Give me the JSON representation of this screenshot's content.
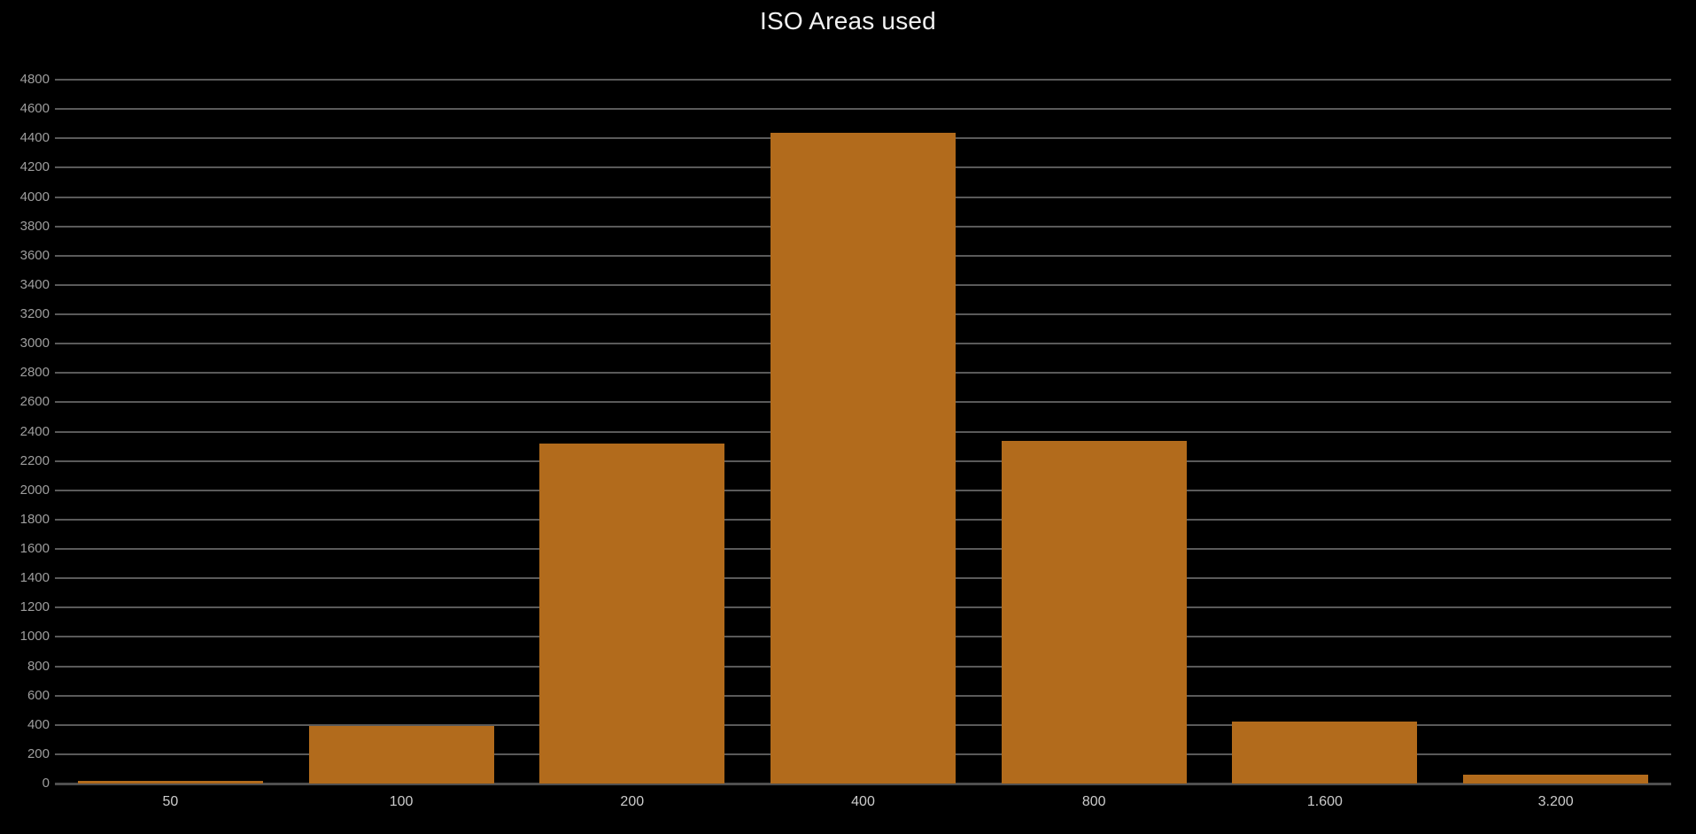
{
  "chart_data": {
    "type": "bar",
    "title": "ISO Areas used",
    "categories": [
      "50",
      "100",
      "200",
      "400",
      "800",
      "1.600",
      "3.200"
    ],
    "values": [
      20,
      390,
      2320,
      4440,
      2335,
      420,
      60
    ],
    "series_note": "single series, no legend shown",
    "xlabel": "",
    "ylabel": "",
    "ylim": [
      0,
      4800
    ],
    "ytick_step": 200,
    "yticks": [
      "0",
      "200",
      "400",
      "600",
      "800",
      "1000",
      "1200",
      "1400",
      "1600",
      "1800",
      "2000",
      "2200",
      "2400",
      "2600",
      "2800",
      "3000",
      "3200",
      "3400",
      "3600",
      "3800",
      "4000",
      "4200",
      "4400",
      "4600",
      "4800"
    ],
    "grid": "horizontal",
    "legend_position": "none",
    "colors": {
      "background": "#000000",
      "bar": "#b26b1c",
      "gridline": "#5a5a5a",
      "axis_baseline": "#4f4f4f",
      "y_tick_label": "#9e9e9e",
      "x_tick_label": "#cccccc",
      "title": "#f2f2f2"
    }
  }
}
